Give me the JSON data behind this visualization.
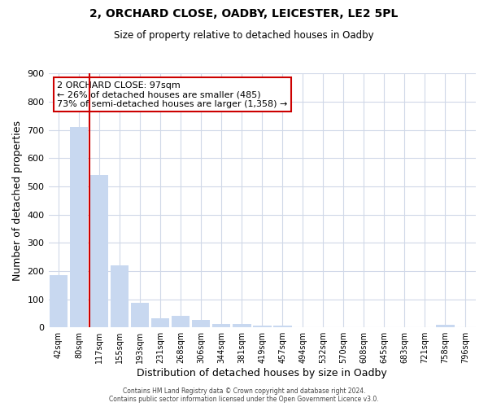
{
  "title": "2, ORCHARD CLOSE, OADBY, LEICESTER, LE2 5PL",
  "subtitle": "Size of property relative to detached houses in Oadby",
  "xlabel": "Distribution of detached houses by size in Oadby",
  "ylabel": "Number of detached properties",
  "bar_labels": [
    "42sqm",
    "80sqm",
    "117sqm",
    "155sqm",
    "193sqm",
    "231sqm",
    "268sqm",
    "306sqm",
    "344sqm",
    "381sqm",
    "419sqm",
    "457sqm",
    "494sqm",
    "532sqm",
    "570sqm",
    "608sqm",
    "645sqm",
    "683sqm",
    "721sqm",
    "758sqm",
    "796sqm"
  ],
  "bar_values": [
    185,
    710,
    540,
    220,
    88,
    32,
    40,
    26,
    12,
    12,
    5,
    5,
    0,
    0,
    0,
    0,
    0,
    0,
    0,
    8,
    0
  ],
  "bar_color": "#c8d8f0",
  "highlight_bar_index": 1,
  "highlight_color": "#cc0000",
  "ylim": [
    0,
    900
  ],
  "yticks": [
    0,
    100,
    200,
    300,
    400,
    500,
    600,
    700,
    800,
    900
  ],
  "annotation_title": "2 ORCHARD CLOSE: 97sqm",
  "annotation_line1": "← 26% of detached houses are smaller (485)",
  "annotation_line2": "73% of semi-detached houses are larger (1,358) →",
  "annotation_box_color": "#ffffff",
  "annotation_box_edge": "#cc0000",
  "footer_line1": "Contains HM Land Registry data © Crown copyright and database right 2024.",
  "footer_line2": "Contains public sector information licensed under the Open Government Licence v3.0.",
  "bg_color": "#ffffff",
  "grid_color": "#d0d8e8"
}
